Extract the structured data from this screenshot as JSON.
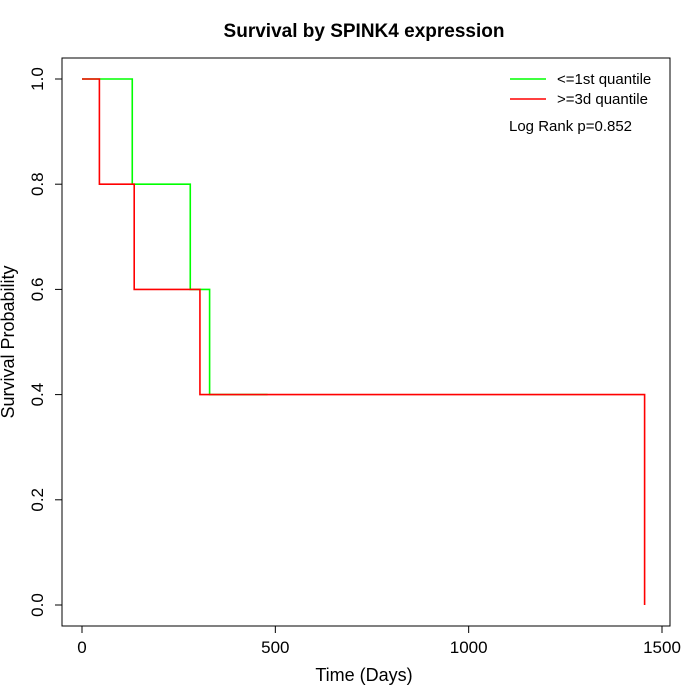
{
  "chart_data": {
    "type": "line",
    "title": "Survival by SPINK4 expression",
    "xlabel": "Time (Days)",
    "ylabel": "Survival Probability",
    "xlim": [
      0,
      1500
    ],
    "ylim": [
      0,
      1
    ],
    "x_ticks": [
      {
        "value": 0,
        "label": "0"
      },
      {
        "value": 500,
        "label": "500"
      },
      {
        "value": 1000,
        "label": "1000"
      },
      {
        "value": 1500,
        "label": "1500"
      }
    ],
    "y_ticks": [
      {
        "value": 0,
        "label": "0.0"
      },
      {
        "value": 0.2,
        "label": "0.2"
      },
      {
        "value": 0.4,
        "label": "0.4"
      },
      {
        "value": 0.6,
        "label": "0.6"
      },
      {
        "value": 0.8,
        "label": "0.8"
      },
      {
        "value": 1.0,
        "label": "1.0"
      }
    ],
    "grid": false,
    "legend_position": "top-right",
    "annotation": "Log Rank p=0.852",
    "series": [
      {
        "name": "<=1st quantile",
        "color": "#00ff00",
        "step": "post",
        "points": [
          {
            "x": 0,
            "y": 1.0
          },
          {
            "x": 130,
            "y": 0.8
          },
          {
            "x": 280,
            "y": 0.6
          },
          {
            "x": 330,
            "y": 0.4
          },
          {
            "x": 480,
            "y": 0.4
          }
        ]
      },
      {
        "name": ">=3d quantile",
        "color": "#ff0000",
        "step": "post",
        "points": [
          {
            "x": 0,
            "y": 1.0
          },
          {
            "x": 45,
            "y": 0.8
          },
          {
            "x": 135,
            "y": 0.6
          },
          {
            "x": 305,
            "y": 0.4
          },
          {
            "x": 1455,
            "y": 0.0
          }
        ]
      }
    ]
  }
}
